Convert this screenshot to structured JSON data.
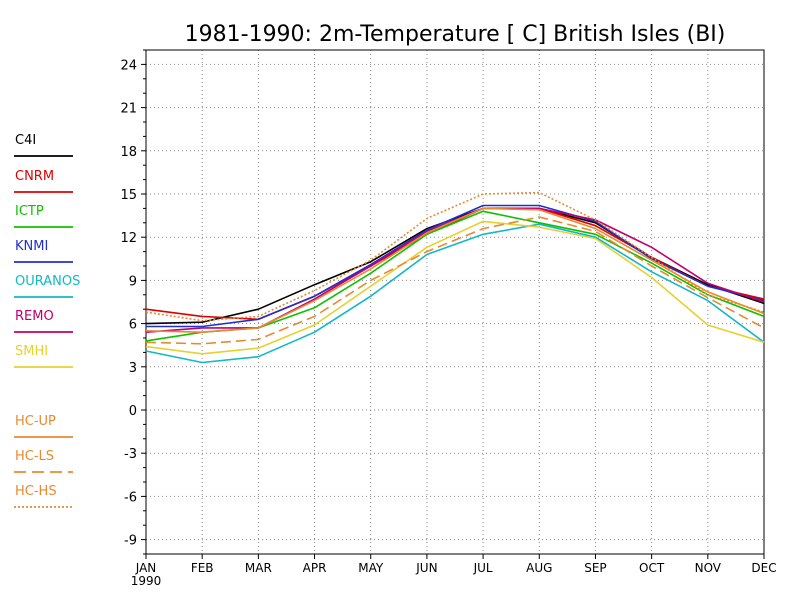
{
  "chart_data": {
    "type": "line",
    "title": "1981-1990: 2m-Temperature [  C] British Isles (BI)",
    "xlabel": "",
    "ylabel": "",
    "categories": [
      "JAN",
      "FEB",
      "MAR",
      "APR",
      "MAY",
      "JUN",
      "JUL",
      "AUG",
      "SEP",
      "OCT",
      "NOV",
      "DEC"
    ],
    "year_label": "1990",
    "ylim": [
      -10,
      25
    ],
    "yticks": [
      -9,
      -6,
      -3,
      0,
      3,
      6,
      9,
      12,
      15,
      18,
      21,
      24
    ],
    "grid": true,
    "legend_position": "left",
    "series": [
      {
        "name": "C4I",
        "color": "#000000",
        "dash": "solid",
        "values": [
          6.0,
          6.1,
          7.0,
          8.7,
          10.3,
          12.6,
          14.0,
          14.0,
          13.0,
          10.6,
          8.7,
          7.4
        ]
      },
      {
        "name": "CNRM",
        "color": "#e00000",
        "dash": "solid",
        "values": [
          7.0,
          6.5,
          6.3,
          7.9,
          10.0,
          12.2,
          14.0,
          14.0,
          12.8,
          10.6,
          8.6,
          7.7
        ]
      },
      {
        "name": "ICTP",
        "color": "#10c000",
        "dash": "solid",
        "values": [
          4.8,
          5.4,
          5.7,
          7.1,
          9.5,
          12.2,
          13.8,
          13.0,
          12.2,
          10.2,
          8.0,
          6.5
        ]
      },
      {
        "name": "KNMI",
        "color": "#2030d0",
        "dash": "solid",
        "values": [
          5.8,
          5.8,
          6.3,
          7.9,
          10.1,
          12.5,
          14.2,
          14.2,
          13.1,
          10.5,
          8.6,
          7.6
        ]
      },
      {
        "name": "OURANOS",
        "color": "#10b8c8",
        "dash": "solid",
        "values": [
          4.1,
          3.3,
          3.7,
          5.4,
          7.9,
          10.8,
          12.2,
          12.9,
          12.0,
          9.6,
          7.6,
          4.7
        ]
      },
      {
        "name": "REMO",
        "color": "#c00070",
        "dash": "solid",
        "values": [
          5.4,
          5.7,
          5.7,
          7.7,
          10.0,
          12.4,
          14.0,
          14.0,
          13.2,
          11.3,
          8.8,
          7.5
        ]
      },
      {
        "name": "SMHI",
        "color": "#e8d030",
        "dash": "solid",
        "values": [
          4.4,
          3.9,
          4.3,
          5.9,
          8.6,
          11.3,
          13.1,
          12.7,
          11.9,
          9.2,
          5.9,
          4.7
        ]
      },
      {
        "name": "HC-UP",
        "color": "#e88a30",
        "dash": "solid",
        "values": [
          5.5,
          5.4,
          5.7,
          7.6,
          9.8,
          12.3,
          14.0,
          13.9,
          12.6,
          10.4,
          8.2,
          6.7
        ]
      },
      {
        "name": "HC-LS",
        "color": "#e88a30",
        "dash": "dashed",
        "values": [
          4.7,
          4.6,
          4.9,
          6.5,
          9.0,
          11.0,
          12.6,
          13.4,
          12.4,
          10.0,
          7.8,
          5.7
        ]
      },
      {
        "name": "HC-HS",
        "color": "#e88a30",
        "dash": "dotted",
        "values": [
          6.8,
          6.2,
          6.5,
          8.3,
          10.4,
          13.3,
          15.0,
          15.1,
          13.2,
          10.6,
          8.0,
          6.8
        ]
      }
    ]
  }
}
